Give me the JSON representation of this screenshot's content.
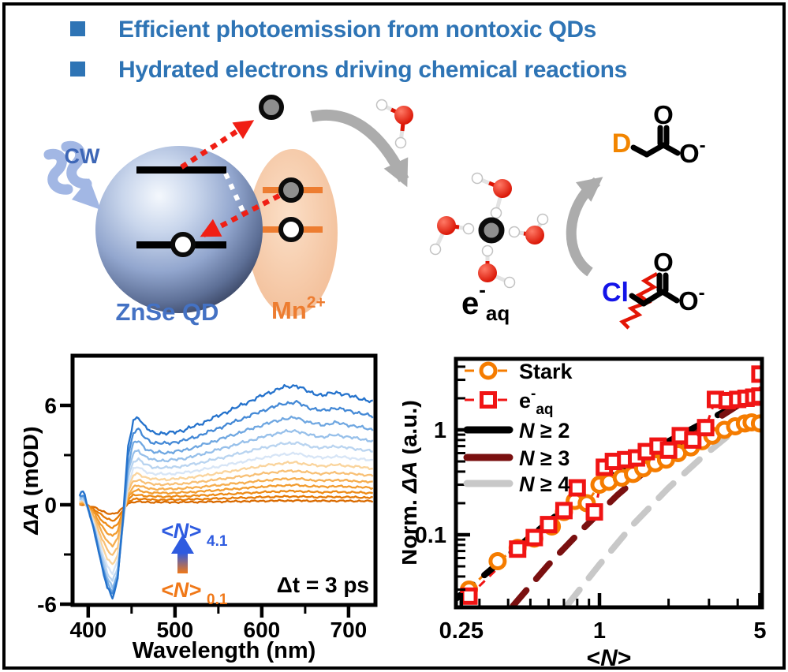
{
  "header": {
    "bullets": [
      "Efficient photoemission from nontoxic QDs",
      "Hydrated electrons driving chemical reactions"
    ],
    "color": "#2E74B5"
  },
  "scheme": {
    "cw_label": "CW",
    "qd_label": "ZnSe QD",
    "mn_label": "Mn",
    "mn_sup": "2+",
    "eaq_main": "e",
    "eaq_sup": "-",
    "eaq_sub": "aq",
    "d_label": "D",
    "cl_label": "Cl",
    "o_label": "O",
    "minus": "-",
    "colors": {
      "cw_blue": "#3D66B6",
      "qd_label_blue": "#4472C4",
      "mn_orange": "#ED7D31",
      "d_orange": "#F28500",
      "cl_blue": "#1414E8",
      "arrow_red": "#F01E14",
      "gray_arrow": "#ACACAC",
      "water_red": "#DD1404"
    }
  },
  "chart_data": [
    {
      "id": "ta-spectra",
      "type": "line",
      "xlabel": "Wavelength (nm)",
      "ylabel_italic": "ΔA",
      "ylabel_rest": " (mOD)",
      "xlim": [
        382,
        731
      ],
      "ylim": [
        -6.05,
        9.0
      ],
      "xticks": [
        400,
        500,
        600,
        700
      ],
      "xticks_minor": [
        450,
        550,
        650
      ],
      "yticks": [
        6,
        0,
        -6
      ],
      "yticks_minor": [
        3,
        -3
      ],
      "delta_label": "Δt = 3 ps",
      "ann_high": {
        "text": "<N>",
        "sub": "4.1",
        "color": "#2E5BE0"
      },
      "ann_low": {
        "text": "<N>",
        "sub": "0.1",
        "color": "#F07818"
      },
      "anchors_nm": [
        390,
        395,
        400,
        408,
        415,
        422,
        428,
        434,
        440,
        446,
        452,
        458,
        465,
        475,
        490,
        510,
        530,
        555,
        580,
        605,
        625,
        640,
        655,
        670,
        685,
        700,
        715,
        728
      ],
      "esa_shape_mOD": [
        0.6,
        0.9,
        0.3,
        0.0,
        0.0,
        0.0,
        0.0,
        0.3,
        1.8,
        4.2,
        5.2,
        5.3,
        4.7,
        4.35,
        4.3,
        4.5,
        4.9,
        5.5,
        6.1,
        6.7,
        7.1,
        7.2,
        6.8,
        6.6,
        6.8,
        6.6,
        6.4,
        6.2
      ],
      "bleach_shape_mOD": [
        0.0,
        -0.1,
        -0.5,
        -1.8,
        -3.6,
        -5.0,
        -5.6,
        -4.8,
        -2.6,
        -0.7,
        -0.1,
        0,
        0,
        0,
        0,
        0,
        0,
        0,
        0,
        0,
        0,
        0,
        0,
        0,
        0,
        0,
        0,
        0
      ],
      "curves": [
        {
          "esa_weight": 0.035,
          "bleach_weight": 0.1,
          "color": "#D96A00"
        },
        {
          "esa_weight": 0.07,
          "bleach_weight": 0.17,
          "color": "#E57905"
        },
        {
          "esa_weight": 0.115,
          "bleach_weight": 0.25,
          "color": "#ED8A15"
        },
        {
          "esa_weight": 0.165,
          "bleach_weight": 0.34,
          "color": "#F29C2F"
        },
        {
          "esa_weight": 0.22,
          "bleach_weight": 0.44,
          "color": "#F6AE4F"
        },
        {
          "esa_weight": 0.285,
          "bleach_weight": 0.545,
          "color": "#F8C075"
        },
        {
          "esa_weight": 0.355,
          "bleach_weight": 0.65,
          "color": "#FAD49C"
        },
        {
          "esa_weight": 0.43,
          "bleach_weight": 0.74,
          "color": "#D7E5F6"
        },
        {
          "esa_weight": 0.52,
          "bleach_weight": 0.82,
          "color": "#B9D4F0"
        },
        {
          "esa_weight": 0.62,
          "bleach_weight": 0.89,
          "color": "#97C0EA"
        },
        {
          "esa_weight": 0.73,
          "bleach_weight": 0.94,
          "color": "#6FA7E1"
        },
        {
          "esa_weight": 0.86,
          "bleach_weight": 0.975,
          "color": "#4489D6"
        },
        {
          "esa_weight": 1.0,
          "bleach_weight": 1.0,
          "color": "#2472CC"
        }
      ]
    },
    {
      "id": "scaling-loglog",
      "type": "scatter",
      "xscale": "log",
      "yscale": "log",
      "xlabel_pre": "<",
      "xlabel_italic": "N",
      "xlabel_post": ">",
      "ylabel_pre": "Norm. ",
      "ylabel_italic": "ΔA",
      "ylabel_rest": " (a.u.)",
      "xlim": [
        0.237,
        5.1
      ],
      "ylim": [
        0.0203,
        4.75
      ],
      "xticks": {
        "values": [
          0.25,
          1,
          5
        ],
        "labels": [
          "0.25",
          "1",
          "5"
        ]
      },
      "yticks": {
        "values": [
          1,
          0.1
        ],
        "labels": [
          "1",
          "0.1"
        ]
      },
      "legend": [
        {
          "type": "circle",
          "color": "#F57C00",
          "label": "Stark"
        },
        {
          "type": "square",
          "color": "#F01414",
          "label_main": "e",
          "label_sup": "-",
          "label_sub": "aq"
        },
        {
          "type": "dash",
          "color": "#000000",
          "label_italic": "N",
          "label_rest": " ≥ 2"
        },
        {
          "type": "dash",
          "color": "#7A1010",
          "label_italic": "N",
          "label_rest": " ≥ 3"
        },
        {
          "type": "dash",
          "color": "#C8C8C8",
          "label_italic": "N",
          "label_rest": " ≥ 4"
        }
      ],
      "series": [
        {
          "name": "Stark",
          "marker": "circle",
          "color": "#F57C00",
          "points": [
            [
              0.27,
              0.03
            ],
            [
              0.36,
              0.056
            ],
            [
              0.44,
              0.075
            ],
            [
              0.52,
              0.092
            ],
            [
              0.62,
              0.12
            ],
            [
              0.7,
              0.165
            ],
            [
              0.78,
              0.21
            ],
            [
              0.88,
              0.2
            ],
            [
              1.0,
              0.3
            ],
            [
              1.1,
              0.32
            ],
            [
              1.25,
              0.35
            ],
            [
              1.4,
              0.38
            ],
            [
              1.55,
              0.43
            ],
            [
              1.75,
              0.48
            ],
            [
              1.95,
              0.52
            ],
            [
              2.2,
              0.6
            ],
            [
              2.5,
              0.68
            ],
            [
              2.8,
              0.78
            ],
            [
              3.1,
              0.88
            ],
            [
              3.5,
              1.0
            ],
            [
              3.9,
              1.08
            ],
            [
              4.3,
              1.15
            ],
            [
              4.6,
              1.18
            ],
            [
              5.0,
              1.15
            ]
          ]
        },
        {
          "name": "e-aq",
          "marker": "square",
          "color": "#F01414",
          "points": [
            [
              0.27,
              0.026
            ],
            [
              0.44,
              0.073
            ],
            [
              0.52,
              0.094
            ],
            [
              0.6,
              0.125
            ],
            [
              0.7,
              0.17
            ],
            [
              0.8,
              0.28
            ],
            [
              0.95,
              0.165
            ],
            [
              1.05,
              0.44
            ],
            [
              1.15,
              0.5
            ],
            [
              1.3,
              0.52
            ],
            [
              1.45,
              0.54
            ],
            [
              1.6,
              0.62
            ],
            [
              1.8,
              0.7
            ],
            [
              2.0,
              0.64
            ],
            [
              2.25,
              0.88
            ],
            [
              2.55,
              0.8
            ],
            [
              2.9,
              1.05
            ],
            [
              3.2,
              1.95
            ],
            [
              3.6,
              1.9
            ],
            [
              4.0,
              1.95
            ],
            [
              4.35,
              2.0
            ],
            [
              4.7,
              2.05
            ],
            [
              5.0,
              2.1
            ],
            [
              5.0,
              3.4
            ]
          ]
        },
        {
          "name": "N>=2 model",
          "marker": "none",
          "style": "thick-dash",
          "color": "#000000",
          "points": [
            [
              0.24,
              0.025
            ],
            [
              0.35,
              0.05
            ],
            [
              0.5,
              0.096
            ],
            [
              0.7,
              0.175
            ],
            [
              1.0,
              0.31
            ],
            [
              1.4,
              0.5
            ],
            [
              2.0,
              0.78
            ],
            [
              2.8,
              1.15
            ],
            [
              3.8,
              1.65
            ],
            [
              5.0,
              2.25
            ]
          ]
        },
        {
          "name": "N>=3 model",
          "marker": "none",
          "style": "thick-dash",
          "color": "#7A1010",
          "points": [
            [
              0.42,
              0.021
            ],
            [
              0.6,
              0.052
            ],
            [
              0.85,
              0.115
            ],
            [
              1.2,
              0.24
            ],
            [
              1.7,
              0.46
            ],
            [
              2.4,
              0.8
            ],
            [
              3.3,
              1.3
            ],
            [
              4.4,
              1.95
            ],
            [
              5.0,
              2.2
            ]
          ]
        },
        {
          "name": "N>=4 model",
          "marker": "none",
          "style": "thick-dash",
          "color": "#C8C8C8",
          "points": [
            [
              0.72,
              0.021
            ],
            [
              1.0,
              0.052
            ],
            [
              1.4,
              0.125
            ],
            [
              2.0,
              0.28
            ],
            [
              2.8,
              0.55
            ],
            [
              3.8,
              0.95
            ],
            [
              4.6,
              1.3
            ]
          ]
        }
      ]
    }
  ]
}
